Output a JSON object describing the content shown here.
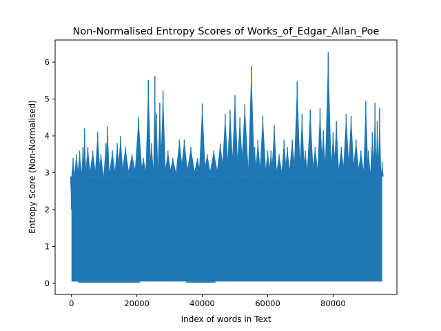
{
  "chart_data": {
    "type": "line",
    "title": "Non-Normalised Entropy Scores of Works_of_Edgar_Allan_Poe",
    "xlabel": "Index of words in Text",
    "ylabel": "Entropy Score (Non-Normalised)",
    "xlim": [
      -5000,
      99500
    ],
    "ylim": [
      -0.3,
      6.6
    ],
    "x_ticks": [
      0,
      20000,
      40000,
      60000,
      80000
    ],
    "x_tick_labels": [
      "0",
      "20000",
      "40000",
      "60000",
      "80000"
    ],
    "y_ticks": [
      0,
      1,
      2,
      3,
      4,
      5,
      6
    ],
    "y_tick_labels": [
      "0",
      "1",
      "2",
      "3",
      "4",
      "5",
      "6"
    ],
    "grid": false,
    "series": [
      {
        "color": "#1f77b4",
        "band_low": 0.05,
        "band_high": 2.9,
        "x": [
          0,
          500,
          1500,
          2500,
          3500,
          4000,
          5000,
          6500,
          8000,
          9000,
          10500,
          11000,
          12500,
          14000,
          15000,
          16500,
          18500,
          20500,
          22000,
          23500,
          24500,
          25500,
          26000,
          27000,
          28000,
          29500,
          31000,
          33000,
          34500,
          36500,
          38500,
          40000,
          41500,
          43500,
          45500,
          47000,
          48500,
          50000,
          51500,
          53000,
          55000,
          56000,
          57000,
          58500,
          60000,
          61000,
          62000,
          63500,
          65000,
          66000,
          67500,
          69000,
          70500,
          71500,
          73000,
          74500,
          76000,
          77000,
          78500,
          80000,
          81000,
          82500,
          84000,
          85500,
          87000,
          88500,
          90000,
          90800,
          92000,
          92800,
          93500,
          94200,
          95000
        ],
        "y": [
          2.0,
          3.4,
          3.5,
          3.6,
          3.7,
          4.2,
          3.7,
          3.6,
          4.1,
          3.5,
          3.8,
          4.25,
          3.6,
          3.8,
          4.0,
          3.7,
          3.5,
          4.5,
          3.4,
          5.52,
          3.8,
          5.63,
          4.6,
          4.9,
          5.22,
          3.6,
          3.4,
          3.9,
          3.9,
          3.7,
          3.4,
          4.88,
          3.5,
          3.6,
          3.8,
          4.6,
          4.7,
          5.1,
          4.5,
          4.85,
          5.9,
          3.7,
          3.9,
          4.55,
          3.6,
          3.6,
          4.3,
          3.5,
          3.9,
          3.7,
          3.9,
          5.48,
          4.6,
          3.6,
          4.72,
          3.7,
          4.75,
          4.15,
          6.27,
          4.1,
          4.4,
          3.7,
          4.6,
          4.55,
          3.9,
          3.6,
          4.95,
          3.6,
          4.1,
          4.9,
          4.4,
          4.75,
          3.3
        ],
        "low_x": [
          0,
          2000,
          15000,
          21000,
          35000,
          44000,
          45500,
          62500,
          71000,
          76500,
          85000,
          95000
        ],
        "low_y": [
          0.15,
          0.02,
          0.02,
          0.12,
          0.02,
          0.22,
          0.05,
          0.12,
          0.1,
          0.15,
          0.05,
          0.02
        ]
      }
    ]
  }
}
